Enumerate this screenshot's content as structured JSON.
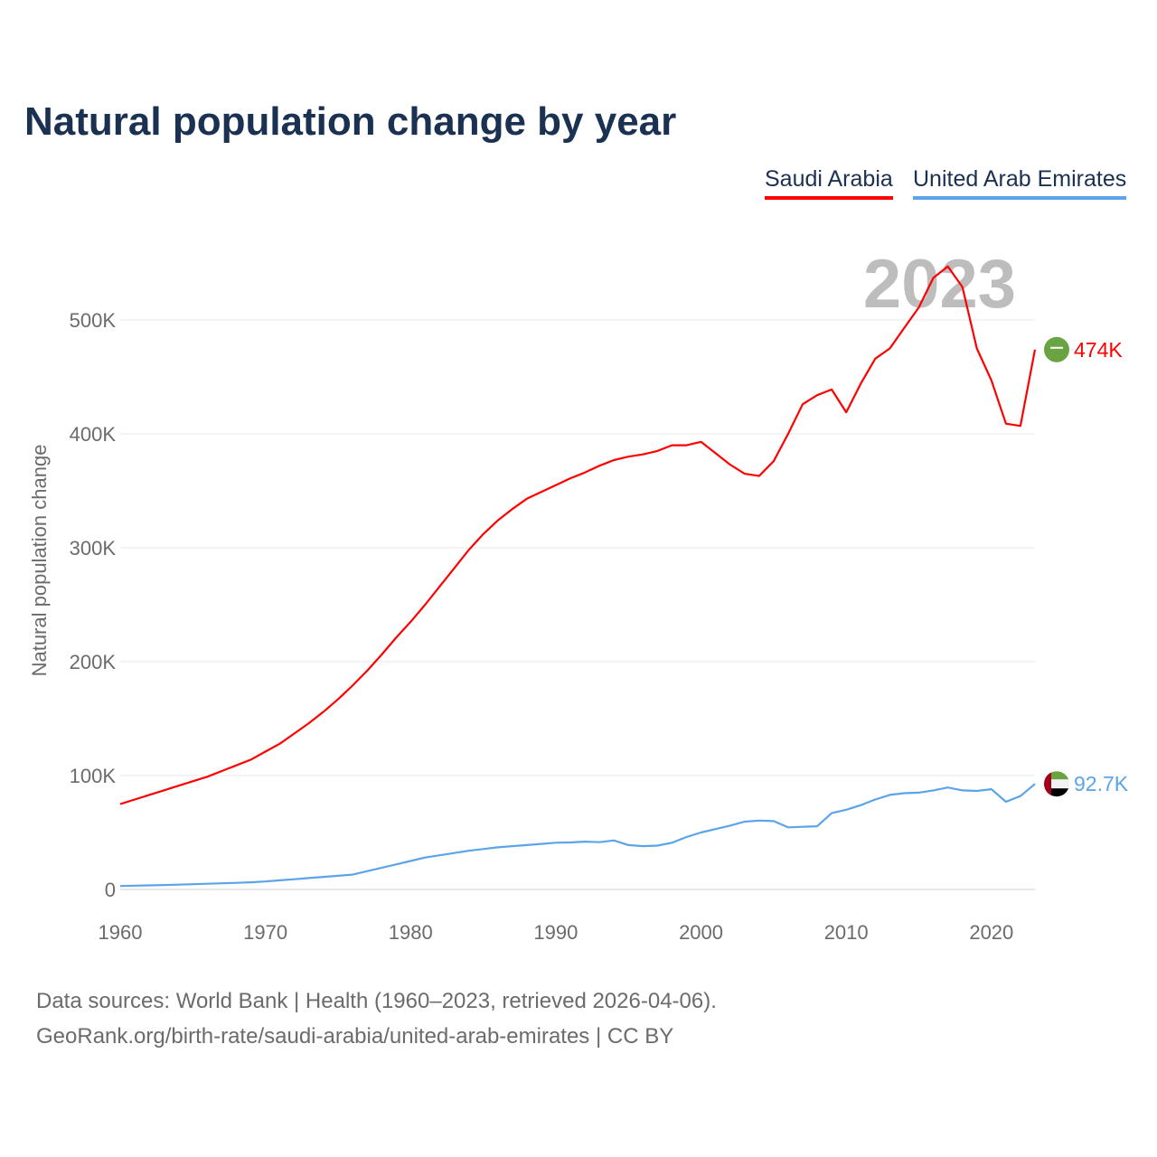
{
  "chart_data": {
    "type": "line",
    "title": "Natural population change by year",
    "ylabel": "Natural population change",
    "xlabel": "",
    "ylim": [
      0,
      560000
    ],
    "xlim": [
      1960,
      2023
    ],
    "yticks": [
      {
        "v": 0,
        "label": "0"
      },
      {
        "v": 100000,
        "label": "100K"
      },
      {
        "v": 200000,
        "label": "200K"
      },
      {
        "v": 300000,
        "label": "300K"
      },
      {
        "v": 400000,
        "label": "400K"
      },
      {
        "v": 500000,
        "label": "500K"
      }
    ],
    "xticks": [
      {
        "v": 1960,
        "label": "1960"
      },
      {
        "v": 1970,
        "label": "1970"
      },
      {
        "v": 1980,
        "label": "1980"
      },
      {
        "v": 1990,
        "label": "1990"
      },
      {
        "v": 2000,
        "label": "2000"
      },
      {
        "v": 2010,
        "label": "2010"
      },
      {
        "v": 2020,
        "label": "2020"
      }
    ],
    "grid": true,
    "legend_placement": "top-right",
    "current_year_label": "2023",
    "x_start": 1960,
    "series": [
      {
        "name": "Saudi Arabia",
        "color": "#ff0000",
        "end_label": "474K",
        "flag": "saudi-arabia",
        "values": [
          75000,
          79000,
          83000,
          87000,
          91000,
          95000,
          99000,
          104000,
          109000,
          114000,
          121000,
          128000,
          137000,
          146000,
          156000,
          167000,
          179000,
          192000,
          206000,
          221000,
          235000,
          250000,
          266000,
          282000,
          298000,
          312000,
          324000,
          334000,
          343000,
          349000,
          355000,
          361000,
          366000,
          372000,
          377000,
          380000,
          382000,
          385000,
          390000,
          390000,
          393000,
          383000,
          373000,
          365000,
          363000,
          376000,
          400000,
          426000,
          434000,
          439000,
          419000,
          444000,
          466000,
          475000,
          493000,
          511000,
          537000,
          547000,
          529000,
          475000,
          447000,
          409000,
          407000,
          474000
        ]
      },
      {
        "name": "United Arab Emirates",
        "color": "#5ba4ea",
        "end_label": "92.7K",
        "flag": "uae",
        "values": [
          3000,
          3300,
          3600,
          3900,
          4200,
          4600,
          5000,
          5400,
          5800,
          6300,
          7000,
          8000,
          9000,
          10000,
          11000,
          12000,
          13000,
          16000,
          19000,
          22000,
          25000,
          28000,
          30000,
          32000,
          34000,
          35500,
          37000,
          38000,
          39000,
          40000,
          41000,
          41300,
          42000,
          41500,
          43000,
          39000,
          38000,
          38500,
          41000,
          46000,
          50000,
          53000,
          56000,
          59500,
          60500,
          60000,
          54500,
          55000,
          55500,
          67000,
          70000,
          74000,
          79000,
          83000,
          84500,
          85000,
          87000,
          89500,
          87000,
          86500,
          88000,
          77000,
          82000,
          92700
        ]
      }
    ]
  },
  "footer": {
    "line1": "Data sources: World Bank | Health (1960–2023, retrieved 2026-04-06).",
    "line2": "GeoRank.org/birth-rate/saudi-arabia/united-arab-emirates | CC BY"
  }
}
